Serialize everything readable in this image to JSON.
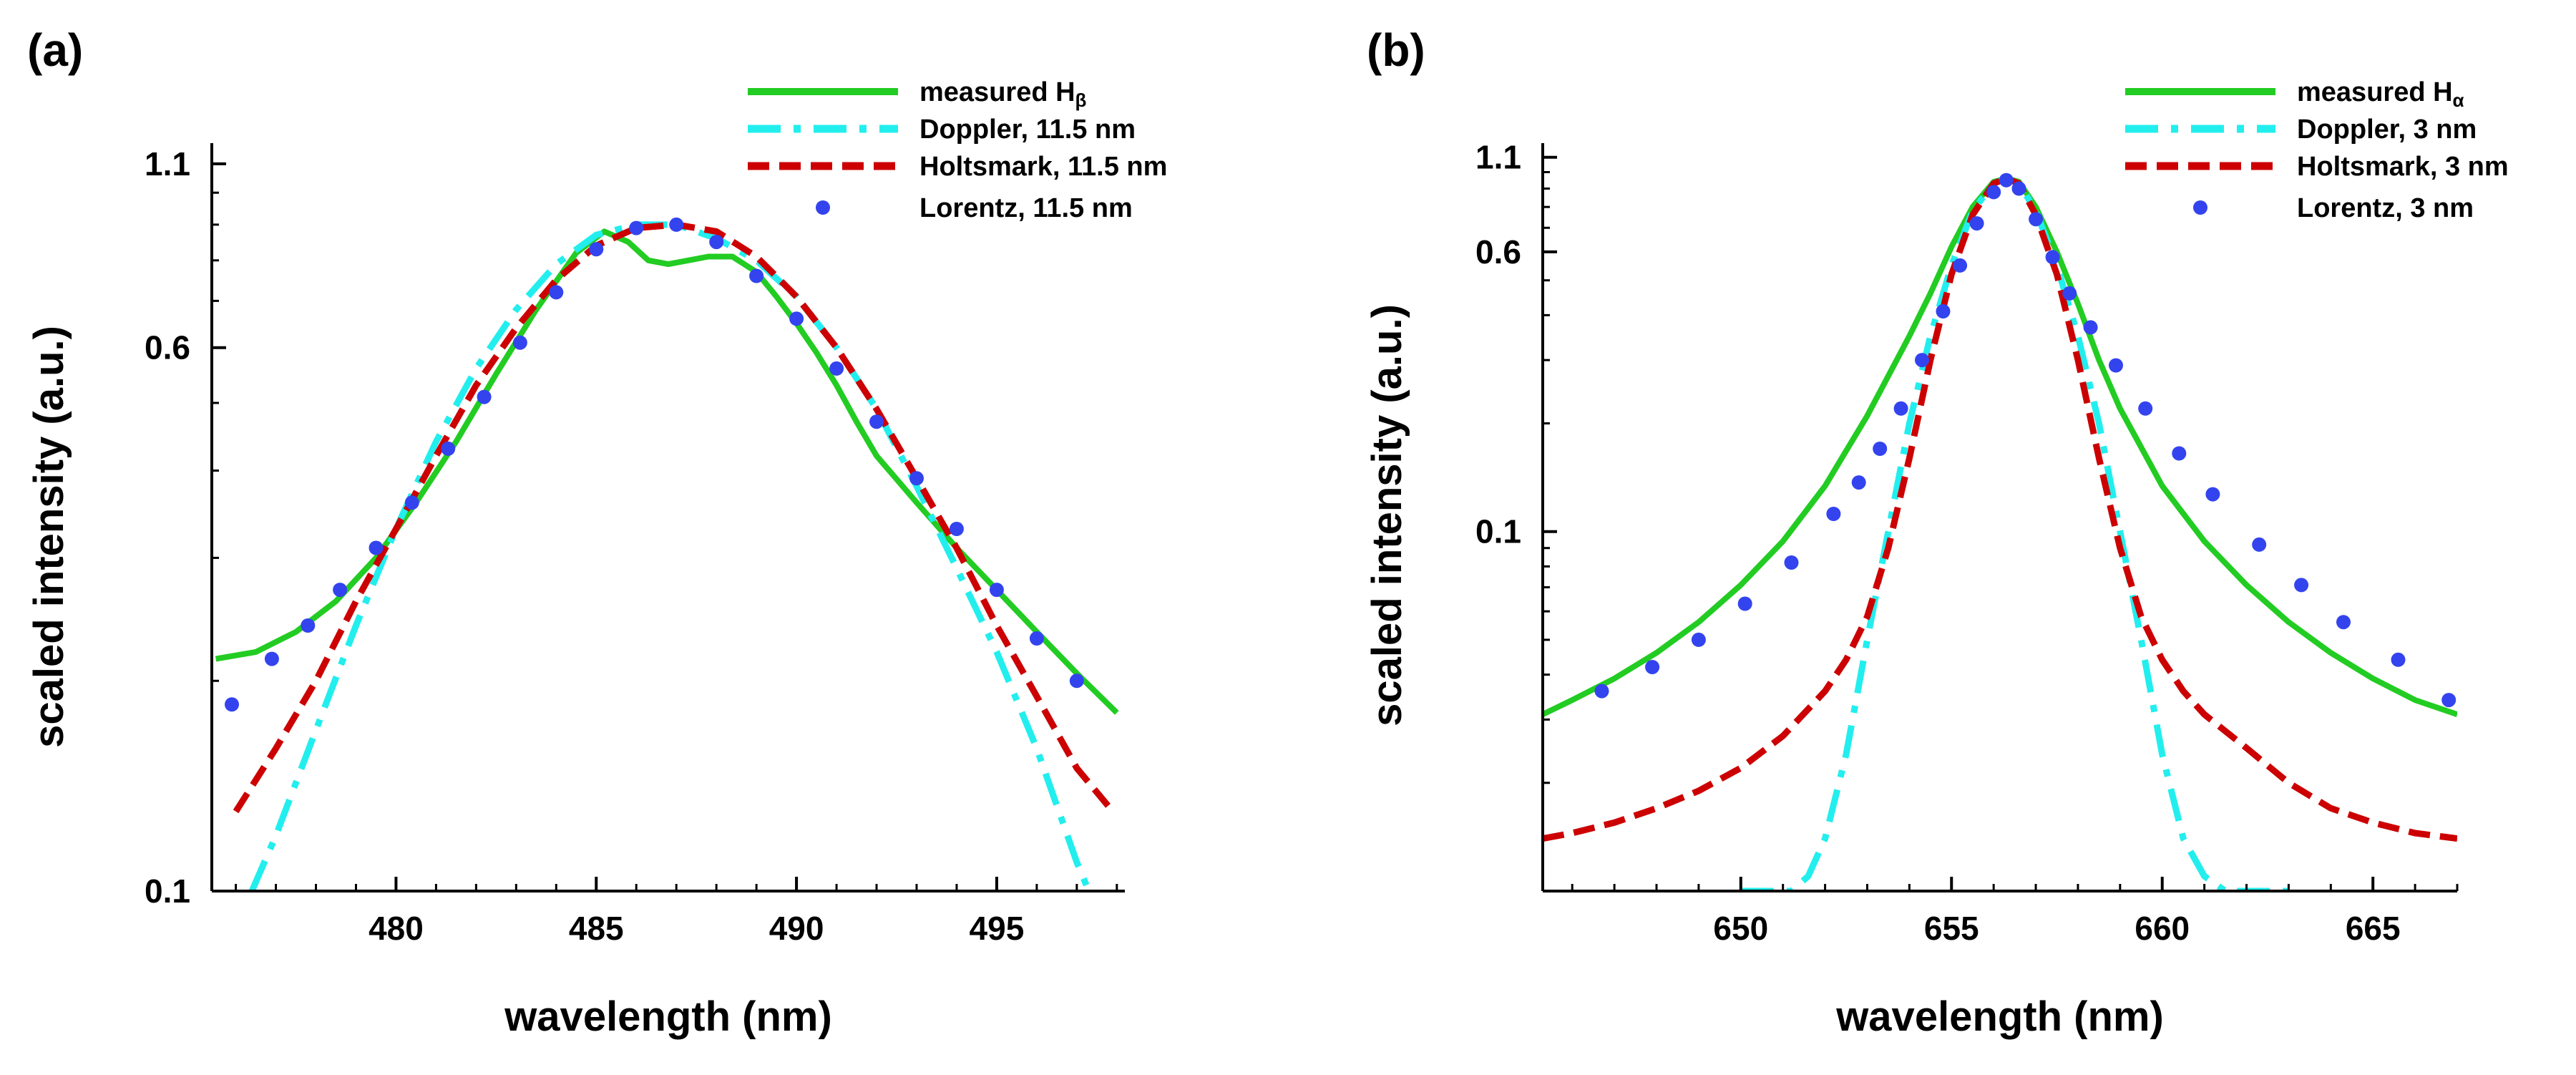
{
  "colors": {
    "measured": "#22cc22",
    "doppler": "#22eeee",
    "holtsmark": "#cc0000",
    "lorentz": "#3344ee",
    "axis": "#000000"
  },
  "chart_data": [
    {
      "type": "line",
      "panel_label": "(a)",
      "title": "",
      "xlabel": "wavelength (nm)",
      "ylabel": "scaled intensity (a.u.)",
      "yscale": "log",
      "xlim": [
        475.4,
        498.2
      ],
      "ylim": [
        0.1,
        1.15
      ],
      "xticks": [
        480,
        485,
        490,
        495
      ],
      "xtick_labels": [
        "480",
        "485",
        "490",
        "495"
      ],
      "yticks": [
        0.1,
        0.6,
        1.1
      ],
      "ytick_labels": [
        "0.1",
        "0.6",
        "1.1"
      ],
      "legend_position": "top-right",
      "legend": [
        {
          "key": "measured",
          "label": "measured H",
          "sub": "β",
          "style": "solid"
        },
        {
          "key": "doppler",
          "label": "Doppler, 11.5 nm",
          "sub": "",
          "style": "dashdot"
        },
        {
          "key": "holtsmark",
          "label": "Holtsmark, 11.5 nm",
          "sub": "",
          "style": "dashed"
        },
        {
          "key": "lorentz",
          "label": "Lorentz, 11.5 nm",
          "sub": "",
          "style": "dots"
        }
      ],
      "series": [
        {
          "key": "measured",
          "name": "measured Hβ",
          "x": [
            475.5,
            476.5,
            477.5,
            478.5,
            479.5,
            480.5,
            481.5,
            482.5,
            483.5,
            484.5,
            485.2,
            485.8,
            486.3,
            486.8,
            487.3,
            487.8,
            488.4,
            489.0,
            489.5,
            490.0,
            490.5,
            491.0,
            491.5,
            492.0,
            493.0,
            494.0,
            495.0,
            496.0,
            497.0,
            498.0
          ],
          "y": [
            0.215,
            0.22,
            0.235,
            0.26,
            0.3,
            0.36,
            0.44,
            0.55,
            0.68,
            0.82,
            0.88,
            0.85,
            0.8,
            0.79,
            0.8,
            0.81,
            0.81,
            0.77,
            0.71,
            0.65,
            0.59,
            0.53,
            0.47,
            0.42,
            0.36,
            0.31,
            0.27,
            0.235,
            0.205,
            0.18
          ]
        },
        {
          "key": "doppler",
          "name": "Doppler, 11.5 nm",
          "x": [
            476.4,
            477.0,
            478.0,
            479.0,
            480.0,
            481.0,
            482.0,
            483.0,
            484.0,
            485.0,
            486.0,
            487.0,
            488.0,
            489.0,
            490.0,
            491.0,
            492.0,
            493.0,
            494.0,
            495.0,
            496.0,
            497.0,
            497.3
          ],
          "y": [
            0.1,
            0.12,
            0.17,
            0.24,
            0.33,
            0.44,
            0.56,
            0.68,
            0.79,
            0.87,
            0.9,
            0.9,
            0.86,
            0.8,
            0.71,
            0.6,
            0.49,
            0.38,
            0.29,
            0.22,
            0.16,
            0.11,
            0.1
          ]
        },
        {
          "key": "holtsmark",
          "name": "Holtsmark, 11.5 nm",
          "x": [
            476.0,
            477.0,
            478.0,
            479.0,
            480.0,
            481.0,
            482.0,
            483.0,
            484.0,
            485.0,
            486.0,
            487.0,
            488.0,
            489.0,
            490.0,
            491.0,
            492.0,
            493.0,
            494.0,
            495.0,
            496.0,
            497.0,
            497.9
          ],
          "y": [
            0.13,
            0.16,
            0.2,
            0.26,
            0.33,
            0.42,
            0.53,
            0.64,
            0.75,
            0.84,
            0.89,
            0.9,
            0.88,
            0.81,
            0.71,
            0.6,
            0.49,
            0.39,
            0.31,
            0.24,
            0.19,
            0.15,
            0.13
          ]
        },
        {
          "key": "lorentz",
          "name": "Lorentz, 11.5 nm",
          "x": [
            475.9,
            476.9,
            477.8,
            478.6,
            479.5,
            480.4,
            481.3,
            482.2,
            483.1,
            484.0,
            485.0,
            486.0,
            487.0,
            488.0,
            489.0,
            490.0,
            491.0,
            492.0,
            493.0,
            494.0,
            495.0,
            496.0,
            497.0
          ],
          "y": [
            0.185,
            0.215,
            0.24,
            0.27,
            0.31,
            0.36,
            0.43,
            0.51,
            0.61,
            0.72,
            0.83,
            0.89,
            0.9,
            0.85,
            0.76,
            0.66,
            0.56,
            0.47,
            0.39,
            0.33,
            0.27,
            0.23,
            0.2
          ]
        }
      ]
    },
    {
      "type": "line",
      "panel_label": "(b)",
      "title": "",
      "xlabel": "wavelength (nm)",
      "ylabel": "scaled intensity (a.u.)",
      "yscale": "log",
      "xlim": [
        645.3,
        667.0
      ],
      "ylim": [
        0.01,
        1.15
      ],
      "xticks": [
        650,
        655,
        660,
        665
      ],
      "xtick_labels": [
        "650",
        "655",
        "660",
        "665"
      ],
      "yticks": [
        0.1,
        0.6,
        1.1
      ],
      "ytick_labels": [
        "0.1",
        "0.6",
        "1.1"
      ],
      "legend_position": "top-right",
      "legend": [
        {
          "key": "measured",
          "label": "measured H",
          "sub": "α",
          "style": "solid"
        },
        {
          "key": "doppler",
          "label": "Doppler, 3 nm",
          "sub": "",
          "style": "dashdot"
        },
        {
          "key": "holtsmark",
          "label": "Holtsmark, 3 nm",
          "sub": "",
          "style": "dashed"
        },
        {
          "key": "lorentz",
          "label": "Lorentz, 3 nm",
          "sub": "",
          "style": "dots"
        }
      ],
      "series": [
        {
          "key": "measured",
          "name": "measured Hα",
          "x": [
            645.3,
            646.0,
            647.0,
            648.0,
            649.0,
            650.0,
            651.0,
            652.0,
            653.0,
            654.0,
            654.5,
            655.0,
            655.5,
            656.0,
            656.3,
            656.6,
            657.0,
            657.5,
            658.0,
            658.5,
            659.0,
            660.0,
            661.0,
            662.0,
            663.0,
            664.0,
            665.0,
            666.0,
            667.0
          ],
          "y": [
            0.031,
            0.034,
            0.039,
            0.046,
            0.056,
            0.071,
            0.094,
            0.134,
            0.21,
            0.35,
            0.46,
            0.62,
            0.8,
            0.94,
            0.96,
            0.94,
            0.8,
            0.6,
            0.43,
            0.3,
            0.22,
            0.134,
            0.094,
            0.071,
            0.056,
            0.046,
            0.039,
            0.034,
            0.031
          ]
        },
        {
          "key": "doppler",
          "name": "Doppler, 3 nm",
          "x": [
            650.0,
            651.2,
            651.6,
            652.0,
            652.5,
            653.0,
            653.5,
            654.0,
            654.5,
            655.0,
            655.5,
            656.0,
            656.3,
            656.6,
            657.0,
            657.5,
            658.0,
            658.5,
            659.0,
            659.5,
            660.0,
            660.5,
            661.0,
            661.5,
            663.0
          ],
          "y": [
            0.01,
            0.01,
            0.011,
            0.014,
            0.024,
            0.05,
            0.1,
            0.2,
            0.35,
            0.55,
            0.78,
            0.93,
            0.96,
            0.93,
            0.78,
            0.55,
            0.35,
            0.2,
            0.1,
            0.05,
            0.024,
            0.014,
            0.011,
            0.01,
            0.01
          ]
        },
        {
          "key": "holtsmark",
          "name": "Holtsmark, 3 nm",
          "x": [
            645.3,
            646.0,
            647.0,
            648.0,
            649.0,
            650.0,
            651.0,
            652.0,
            652.5,
            653.0,
            653.5,
            654.0,
            654.5,
            655.0,
            655.5,
            656.0,
            656.3,
            656.6,
            657.0,
            657.5,
            658.0,
            658.5,
            659.0,
            659.5,
            660.0,
            660.5,
            661.0,
            662.0,
            663.0,
            664.0,
            665.0,
            666.0,
            667.0
          ],
          "y": [
            0.014,
            0.0145,
            0.0155,
            0.017,
            0.019,
            0.022,
            0.027,
            0.036,
            0.044,
            0.058,
            0.09,
            0.16,
            0.3,
            0.52,
            0.76,
            0.93,
            0.96,
            0.93,
            0.76,
            0.52,
            0.3,
            0.16,
            0.09,
            0.058,
            0.044,
            0.036,
            0.031,
            0.025,
            0.02,
            0.017,
            0.0155,
            0.0145,
            0.014
          ]
        },
        {
          "key": "lorentz",
          "name": "Lorentz, 3 nm",
          "x": [
            646.7,
            647.9,
            649.0,
            650.1,
            651.2,
            652.2,
            652.8,
            653.3,
            653.8,
            654.3,
            654.8,
            655.2,
            655.6,
            656.0,
            656.3,
            656.6,
            657.0,
            657.4,
            657.8,
            658.3,
            658.9,
            659.6,
            660.4,
            661.2,
            662.3,
            663.3,
            664.3,
            665.6,
            666.8
          ],
          "y": [
            0.036,
            0.042,
            0.05,
            0.063,
            0.082,
            0.112,
            0.137,
            0.17,
            0.22,
            0.3,
            0.41,
            0.55,
            0.72,
            0.88,
            0.95,
            0.9,
            0.74,
            0.58,
            0.46,
            0.37,
            0.29,
            0.22,
            0.165,
            0.127,
            0.092,
            0.071,
            0.056,
            0.044,
            0.034
          ]
        }
      ]
    }
  ]
}
